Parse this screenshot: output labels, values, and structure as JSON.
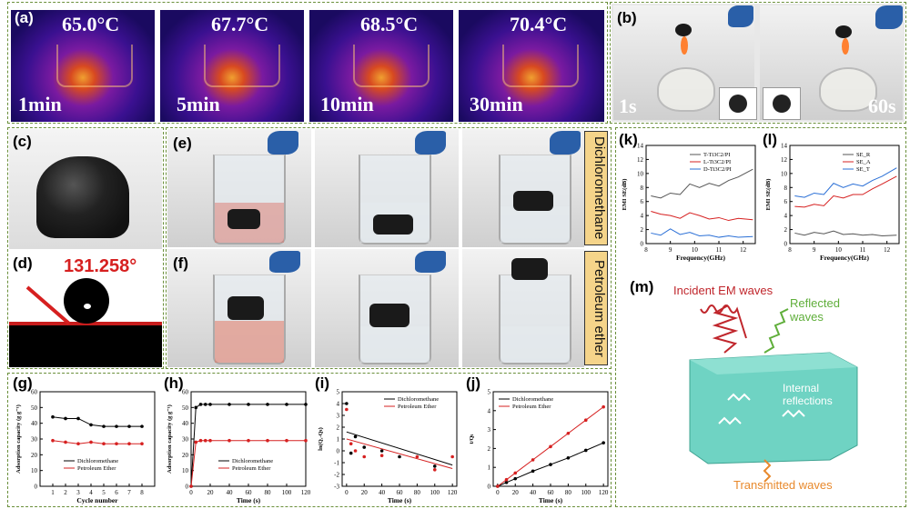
{
  "panels": {
    "a": {
      "letter": "(a)",
      "temps": [
        "65.0°C",
        "67.7°C",
        "68.5°C",
        "70.4°C"
      ],
      "times": [
        "1min",
        "5min",
        "10min",
        "30min"
      ]
    },
    "b": {
      "letter": "(b)",
      "times": [
        "1s",
        "60s"
      ]
    },
    "c": {
      "letter": "(c)"
    },
    "d": {
      "letter": "(d)",
      "angle": "131.258°"
    },
    "e": {
      "letter": "(e)",
      "solvent": "Dichloromethane"
    },
    "f": {
      "letter": "(f)",
      "solvent": "Petroleum ether"
    },
    "g": {
      "letter": "(g)"
    },
    "h": {
      "letter": "(h)"
    },
    "i": {
      "letter": "(i)"
    },
    "j": {
      "letter": "(j)"
    },
    "k": {
      "letter": "(k)"
    },
    "l": {
      "letter": "(l)"
    },
    "m": {
      "letter": "(m)",
      "incident": "Incident EM waves",
      "reflected": "Reflected waves",
      "internal": "Internal reflections",
      "transmitted": "Transmitted waves"
    }
  },
  "colors": {
    "black_series": "#000000",
    "red_series": "#d62020",
    "blue_series": "#2a6fd6",
    "foam": "#6fd3c3",
    "panel_border": "#6a8f3a"
  },
  "chart_data": [
    {
      "type": "line",
      "panel": "g",
      "xlabel": "Cycle number",
      "ylabel": "Adsorption capacity (g g⁻¹)",
      "xlim": [
        0,
        9
      ],
      "ylim": [
        0,
        60
      ],
      "xticks": [
        "1",
        "2",
        "3",
        "4",
        "5",
        "6",
        "7",
        "8"
      ],
      "yticks": [
        "0",
        "10",
        "20",
        "30",
        "40",
        "50",
        "60"
      ],
      "series": [
        {
          "name": "Dichloromethane",
          "color": "#000000",
          "x": [
            1,
            2,
            3,
            4,
            5,
            6,
            7,
            8
          ],
          "y": [
            44,
            43,
            43,
            39,
            38,
            38,
            38,
            38
          ]
        },
        {
          "name": "Petroleum Ether",
          "color": "#d62020",
          "x": [
            1,
            2,
            3,
            4,
            5,
            6,
            7,
            8
          ],
          "y": [
            29,
            28,
            27,
            28,
            27,
            27,
            27,
            27
          ]
        }
      ]
    },
    {
      "type": "line",
      "panel": "h",
      "xlabel": "Time (s)",
      "ylabel": "Adsorption capacity (g g⁻¹)",
      "xlim": [
        0,
        120
      ],
      "ylim": [
        0,
        60
      ],
      "xticks": [
        "0",
        "20",
        "40",
        "60",
        "80",
        "100",
        "120"
      ],
      "yticks": [
        "0",
        "10",
        "20",
        "30",
        "40",
        "50",
        "60"
      ],
      "series": [
        {
          "name": "Dichloromethane",
          "color": "#000000",
          "x": [
            0,
            5,
            10,
            15,
            20,
            40,
            60,
            80,
            100,
            120
          ],
          "y": [
            0,
            50,
            52,
            52,
            52,
            52,
            52,
            52,
            52,
            52
          ]
        },
        {
          "name": "Petroleum Ether",
          "color": "#d62020",
          "x": [
            0,
            5,
            10,
            15,
            20,
            40,
            60,
            80,
            100,
            120
          ],
          "y": [
            0,
            28,
            29,
            29,
            29,
            29,
            29,
            29,
            29,
            29
          ]
        }
      ]
    },
    {
      "type": "scatter",
      "panel": "i",
      "xlabel": "Time (s)",
      "ylabel": "ln(Qₑ-Qₜ)",
      "xlim": [
        -5,
        125
      ],
      "ylim": [
        -3,
        5
      ],
      "xticks": [
        "0",
        "20",
        "40",
        "60",
        "80",
        "100",
        "120"
      ],
      "yticks": [
        "-3",
        "-2",
        "-1",
        "0",
        "1",
        "2",
        "3",
        "4",
        "5"
      ],
      "series": [
        {
          "name": "Dichloromethane",
          "color": "#000000",
          "x": [
            0,
            5,
            10,
            20,
            40,
            60,
            100
          ],
          "y": [
            4,
            -0.2,
            1.2,
            0.3,
            0,
            -0.5,
            -1.3
          ],
          "fit": [
            1.6,
            -1.2
          ]
        },
        {
          "name": "Petroleum Ether",
          "color": "#d62020",
          "x": [
            0,
            5,
            10,
            20,
            40,
            80,
            100,
            120
          ],
          "y": [
            3.5,
            0.6,
            0,
            -0.5,
            -0.4,
            -0.5,
            -1.6,
            -0.5
          ],
          "fit": [
            1.0,
            -1.5
          ]
        }
      ]
    },
    {
      "type": "line",
      "panel": "j",
      "xlabel": "Time (s)",
      "ylabel": "t/Qₜ",
      "xlim": [
        -5,
        125
      ],
      "ylim": [
        0,
        5
      ],
      "xticks": [
        "0",
        "20",
        "40",
        "60",
        "80",
        "100",
        "120"
      ],
      "yticks": [
        "0",
        "1",
        "2",
        "3",
        "4",
        "5"
      ],
      "series": [
        {
          "name": "Dichloromethane",
          "color": "#000000",
          "x": [
            0,
            10,
            20,
            40,
            60,
            80,
            100,
            120
          ],
          "y": [
            0,
            0.2,
            0.4,
            0.8,
            1.15,
            1.5,
            1.9,
            2.3
          ]
        },
        {
          "name": "Petroleum Ether",
          "color": "#d62020",
          "x": [
            0,
            10,
            20,
            40,
            60,
            80,
            100,
            120
          ],
          "y": [
            0,
            0.35,
            0.7,
            1.4,
            2.1,
            2.8,
            3.5,
            4.2
          ]
        }
      ]
    },
    {
      "type": "line",
      "panel": "k",
      "xlabel": "Frequency(GHz)",
      "ylabel": "EMI SE(dB)",
      "xlim": [
        8,
        12.5
      ],
      "ylim": [
        0,
        14
      ],
      "xticks": [
        "8",
        "9",
        "10",
        "11",
        "12"
      ],
      "yticks": [
        "0",
        "2",
        "4",
        "6",
        "8",
        "10",
        "12",
        "14"
      ],
      "series": [
        {
          "name": "T-Ti3C2/PI",
          "color": "#555555",
          "x": [
            8.2,
            8.6,
            9.0,
            9.4,
            9.8,
            10.2,
            10.6,
            11.0,
            11.4,
            11.8,
            12.4
          ],
          "y": [
            6.8,
            6.5,
            7.2,
            7.0,
            8.5,
            8.0,
            8.6,
            8.2,
            9.0,
            9.5,
            10.6
          ]
        },
        {
          "name": "L-Ti3C2/PI",
          "color": "#d62020",
          "x": [
            8.2,
            8.6,
            9.0,
            9.4,
            9.8,
            10.2,
            10.6,
            11.0,
            11.4,
            11.8,
            12.4
          ],
          "y": [
            4.6,
            4.2,
            4.0,
            3.6,
            4.4,
            4.0,
            3.5,
            3.7,
            3.3,
            3.6,
            3.4
          ]
        },
        {
          "name": "D-Ti3C2/PI",
          "color": "#2a6fd6",
          "x": [
            8.2,
            8.6,
            9.0,
            9.4,
            9.8,
            10.2,
            10.6,
            11.0,
            11.4,
            11.8,
            12.4
          ],
          "y": [
            1.5,
            1.2,
            2.1,
            1.3,
            1.6,
            1.1,
            1.2,
            0.9,
            1.1,
            0.9,
            1.0
          ]
        }
      ]
    },
    {
      "type": "line",
      "panel": "l",
      "xlabel": "Frequency(GHz)",
      "ylabel": "EMI SE(dB)",
      "xlim": [
        8,
        12.5
      ],
      "ylim": [
        0,
        14
      ],
      "xticks": [
        "8",
        "9",
        "10",
        "11",
        "12"
      ],
      "yticks": [
        "0",
        "2",
        "4",
        "6",
        "8",
        "10",
        "12",
        "14"
      ],
      "series": [
        {
          "name": "SE_R",
          "color": "#555555",
          "x": [
            8.2,
            8.6,
            9.0,
            9.4,
            9.8,
            10.2,
            10.6,
            11.0,
            11.4,
            11.8,
            12.4
          ],
          "y": [
            1.5,
            1.2,
            1.6,
            1.4,
            1.8,
            1.3,
            1.4,
            1.2,
            1.3,
            1.1,
            1.2
          ]
        },
        {
          "name": "SE_A",
          "color": "#d62020",
          "x": [
            8.2,
            8.6,
            9.0,
            9.4,
            9.8,
            10.2,
            10.6,
            11.0,
            11.4,
            11.8,
            12.4
          ],
          "y": [
            5.3,
            5.2,
            5.6,
            5.4,
            6.8,
            6.5,
            7.0,
            7.0,
            7.8,
            8.5,
            9.6
          ]
        },
        {
          "name": "SE_T",
          "color": "#2a6fd6",
          "x": [
            8.2,
            8.6,
            9.0,
            9.4,
            9.8,
            10.2,
            10.6,
            11.0,
            11.4,
            11.8,
            12.4
          ],
          "y": [
            6.8,
            6.6,
            7.2,
            7.0,
            8.6,
            8.0,
            8.5,
            8.2,
            9.0,
            9.6,
            10.8
          ]
        }
      ]
    }
  ]
}
